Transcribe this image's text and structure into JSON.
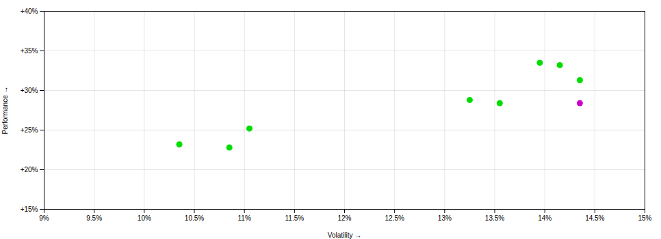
{
  "chart_data": {
    "type": "scatter",
    "xlabel": "Volatility",
    "ylabel": "Performance",
    "xlim": [
      0.09,
      0.15
    ],
    "ylim": [
      0.15,
      0.4
    ],
    "xticks": [
      {
        "value": 0.09,
        "label": "9%"
      },
      {
        "value": 0.095,
        "label": "9.5%"
      },
      {
        "value": 0.1,
        "label": "10%"
      },
      {
        "value": 0.105,
        "label": "10.5%"
      },
      {
        "value": 0.11,
        "label": "11%"
      },
      {
        "value": 0.115,
        "label": "11.5%"
      },
      {
        "value": 0.12,
        "label": "12%"
      },
      {
        "value": 0.125,
        "label": "12.5%"
      },
      {
        "value": 0.13,
        "label": "13%"
      },
      {
        "value": 0.135,
        "label": "13.5%"
      },
      {
        "value": 0.14,
        "label": "14%"
      },
      {
        "value": 0.145,
        "label": "14.5%"
      },
      {
        "value": 0.15,
        "label": "15%"
      }
    ],
    "yticks": [
      {
        "value": 0.15,
        "label": "+15%"
      },
      {
        "value": 0.2,
        "label": "+20%"
      },
      {
        "value": 0.25,
        "label": "+25%"
      },
      {
        "value": 0.3,
        "label": "+30%"
      },
      {
        "value": 0.35,
        "label": "+35%"
      },
      {
        "value": 0.4,
        "label": "+40%"
      }
    ],
    "grid": true,
    "series": [
      {
        "color": "#00dd00",
        "x": [
          0.1035,
          0.1085,
          0.1105,
          0.1325,
          0.1355,
          0.1395,
          0.1415,
          0.1435
        ],
        "values": [
          0.232,
          0.228,
          0.252,
          0.288,
          0.284,
          0.335,
          0.332,
          0.313
        ]
      },
      {
        "color": "#cc00cc",
        "x": [
          0.1435
        ],
        "values": [
          0.284
        ]
      }
    ]
  }
}
